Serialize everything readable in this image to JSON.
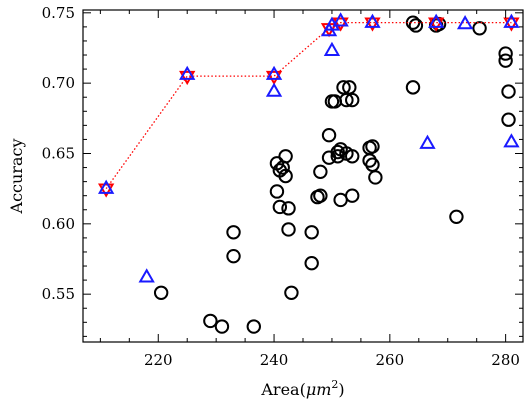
{
  "chart_data": {
    "type": "scatter",
    "xlabel": "Area(μm²)",
    "xlabel_parts": {
      "prefix": "Area(",
      "unit": "μm",
      "exp": "2",
      "suffix": ")"
    },
    "ylabel": "Accuracy",
    "xlim": [
      207,
      283
    ],
    "ylim": [
      0.516,
      0.752
    ],
    "x_ticks": [
      {
        "value": 220,
        "label": "220"
      },
      {
        "value": 240,
        "label": "240"
      },
      {
        "value": 260,
        "label": "260"
      },
      {
        "value": 280,
        "label": "280"
      }
    ],
    "y_ticks": [
      {
        "value": 0.55,
        "label": "0.55"
      },
      {
        "value": 0.6,
        "label": "0.60"
      },
      {
        "value": 0.65,
        "label": "0.65"
      },
      {
        "value": 0.7,
        "label": "0.70"
      },
      {
        "value": 0.75,
        "label": "0.75"
      }
    ],
    "grid": false,
    "legend": null,
    "series": [
      {
        "marker": "circle",
        "color": "#000000",
        "points": [
          [
            220.5,
            0.551
          ],
          [
            229.0,
            0.531
          ],
          [
            231.0,
            0.527
          ],
          [
            233.0,
            0.594
          ],
          [
            233.0,
            0.577
          ],
          [
            236.5,
            0.527
          ],
          [
            240.5,
            0.643
          ],
          [
            241.0,
            0.638
          ],
          [
            240.5,
            0.623
          ],
          [
            241.0,
            0.612
          ],
          [
            241.5,
            0.64
          ],
          [
            242.0,
            0.634
          ],
          [
            242.0,
            0.648
          ],
          [
            242.5,
            0.611
          ],
          [
            242.5,
            0.596
          ],
          [
            243.0,
            0.551
          ],
          [
            246.5,
            0.572
          ],
          [
            246.5,
            0.594
          ],
          [
            247.5,
            0.619
          ],
          [
            248.0,
            0.62
          ],
          [
            248.0,
            0.637
          ],
          [
            249.5,
            0.663
          ],
          [
            249.5,
            0.647
          ],
          [
            250.0,
            0.687
          ],
          [
            250.5,
            0.687
          ],
          [
            251.0,
            0.651
          ],
          [
            251.0,
            0.648
          ],
          [
            251.5,
            0.653
          ],
          [
            251.5,
            0.617
          ],
          [
            252.5,
            0.65
          ],
          [
            252.0,
            0.697
          ],
          [
            253.0,
            0.697
          ],
          [
            252.5,
            0.688
          ],
          [
            253.5,
            0.688
          ],
          [
            253.5,
            0.648
          ],
          [
            253.5,
            0.62
          ],
          [
            256.5,
            0.654
          ],
          [
            256.5,
            0.645
          ],
          [
            257.0,
            0.655
          ],
          [
            257.0,
            0.642
          ],
          [
            257.5,
            0.633
          ],
          [
            264.0,
            0.697
          ],
          [
            264.0,
            0.743
          ],
          [
            264.5,
            0.741
          ],
          [
            268.0,
            0.741
          ],
          [
            268.5,
            0.742
          ],
          [
            271.5,
            0.605
          ],
          [
            275.5,
            0.739
          ],
          [
            280.0,
            0.721
          ],
          [
            280.0,
            0.716
          ],
          [
            280.5,
            0.694
          ],
          [
            280.5,
            0.674
          ]
        ]
      },
      {
        "marker": "triangle-up",
        "color": "#1a1aff",
        "points": [
          [
            211.0,
            0.625
          ],
          [
            218.0,
            0.562
          ],
          [
            225.0,
            0.706
          ],
          [
            240.0,
            0.694
          ],
          [
            240.0,
            0.706
          ],
          [
            249.5,
            0.737
          ],
          [
            250.0,
            0.723
          ],
          [
            250.0,
            0.741
          ],
          [
            251.5,
            0.744
          ],
          [
            257.0,
            0.743
          ],
          [
            266.5,
            0.657
          ],
          [
            268.0,
            0.743
          ],
          [
            273.0,
            0.742
          ],
          [
            281.0,
            0.658
          ],
          [
            281.0,
            0.743
          ]
        ]
      },
      {
        "marker": "triangle-down",
        "color": "#ff0000",
        "line": "dotted",
        "points": [
          [
            211.0,
            0.625
          ],
          [
            225.0,
            0.705
          ],
          [
            240.0,
            0.705
          ],
          [
            249.5,
            0.739
          ],
          [
            251.5,
            0.743
          ],
          [
            257.0,
            0.743
          ],
          [
            268.0,
            0.743
          ],
          [
            281.0,
            0.743
          ]
        ]
      }
    ]
  }
}
